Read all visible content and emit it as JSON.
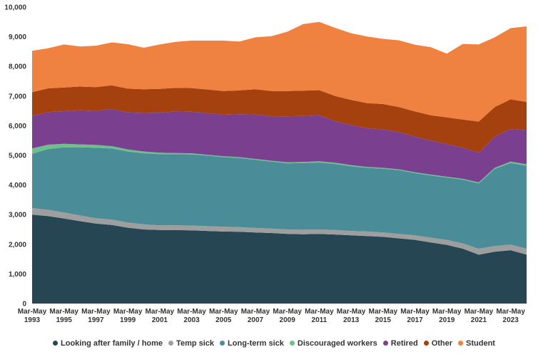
{
  "chart_data": {
    "type": "area",
    "stacked": true,
    "ylim": [
      0,
      10000
    ],
    "y_ticks": [
      "0",
      "1,000",
      "2,000",
      "3,000",
      "4,000",
      "5,000",
      "6,000",
      "7,000",
      "8,000",
      "9,000",
      "10,000"
    ],
    "x_ticks": [
      {
        "line1": "Mar-May",
        "line2": "1993"
      },
      {
        "line1": "Mar-May",
        "line2": "1995"
      },
      {
        "line1": "Mar-May",
        "line2": "1997"
      },
      {
        "line1": "Mar-May",
        "line2": "1999"
      },
      {
        "line1": "Mar-May",
        "line2": "2001"
      },
      {
        "line1": "Mar-May",
        "line2": "2003"
      },
      {
        "line1": "Mar-May",
        "line2": "2005"
      },
      {
        "line1": "Mar-May",
        "line2": "2007"
      },
      {
        "line1": "Mar-May",
        "line2": "2009"
      },
      {
        "line1": "Mar-May",
        "line2": "2011"
      },
      {
        "line1": "Mar-May",
        "line2": "2013"
      },
      {
        "line1": "Mar-May",
        "line2": "2015"
      },
      {
        "line1": "Mar-May",
        "line2": "2017"
      },
      {
        "line1": "Mar-May",
        "line2": "2019"
      },
      {
        "line1": "Mar-May",
        "line2": "2021"
      },
      {
        "line1": "Mar-May",
        "line2": "2023"
      }
    ],
    "x": [
      1993,
      1994,
      1995,
      1996,
      1997,
      1998,
      1999,
      2000,
      2001,
      2002,
      2003,
      2004,
      2005,
      2006,
      2007,
      2008,
      2009,
      2010,
      2011,
      2012,
      2013,
      2014,
      2015,
      2016,
      2017,
      2018,
      2019,
      2020,
      2021,
      2022,
      2023,
      2024
    ],
    "series": [
      {
        "name": "Looking after family / home",
        "color": "#264653",
        "values": [
          3000,
          2950,
          2870,
          2780,
          2700,
          2650,
          2560,
          2500,
          2480,
          2480,
          2470,
          2450,
          2430,
          2420,
          2400,
          2380,
          2350,
          2340,
          2350,
          2330,
          2300,
          2280,
          2250,
          2200,
          2150,
          2060,
          1980,
          1850,
          1650,
          1750,
          1800,
          1650
        ]
      },
      {
        "name": "Temp sick",
        "color": "#9e9e9e",
        "values": [
          220,
          210,
          200,
          190,
          180,
          180,
          170,
          170,
          160,
          160,
          160,
          160,
          160,
          160,
          150,
          150,
          150,
          150,
          150,
          150,
          150,
          150,
          150,
          150,
          150,
          160,
          170,
          180,
          200,
          190,
          190,
          200
        ]
      },
      {
        "name": "Long-term sick",
        "color": "#4a8c98",
        "values": [
          1830,
          2050,
          2200,
          2300,
          2380,
          2400,
          2400,
          2400,
          2400,
          2400,
          2400,
          2380,
          2350,
          2330,
          2300,
          2260,
          2230,
          2250,
          2260,
          2230,
          2180,
          2150,
          2150,
          2150,
          2100,
          2100,
          2100,
          2150,
          2200,
          2600,
          2750,
          2800
        ]
      },
      {
        "name": "Discouraged workers",
        "color": "#6dbf8b",
        "values": [
          180,
          150,
          120,
          100,
          90,
          80,
          70,
          60,
          50,
          40,
          40,
          30,
          30,
          30,
          30,
          30,
          40,
          40,
          40,
          40,
          40,
          30,
          30,
          30,
          30,
          30,
          30,
          30,
          40,
          40,
          50,
          50
        ]
      },
      {
        "name": "Retired",
        "color": "#7b3f8f",
        "values": [
          1100,
          1100,
          1100,
          1150,
          1150,
          1250,
          1250,
          1300,
          1350,
          1400,
          1400,
          1400,
          1400,
          1450,
          1500,
          1500,
          1550,
          1550,
          1550,
          1400,
          1350,
          1300,
          1300,
          1250,
          1200,
          1150,
          1100,
          1050,
          1000,
          1050,
          1100,
          1150
        ]
      },
      {
        "name": "Other",
        "color": "#a5400f",
        "values": [
          800,
          800,
          800,
          800,
          800,
          800,
          800,
          800,
          800,
          800,
          800,
          800,
          800,
          800,
          850,
          850,
          850,
          850,
          850,
          850,
          850,
          850,
          850,
          850,
          850,
          850,
          900,
          950,
          1050,
          1000,
          1000,
          950
        ]
      },
      {
        "name": "Student",
        "color": "#ef8240",
        "values": [
          1400,
          1350,
          1450,
          1350,
          1400,
          1450,
          1500,
          1400,
          1500,
          1550,
          1600,
          1650,
          1700,
          1650,
          1750,
          1850,
          2000,
          2250,
          2300,
          2300,
          2250,
          2250,
          2200,
          2250,
          2250,
          2300,
          2150,
          2550,
          2600,
          2350,
          2400,
          2550
        ]
      }
    ],
    "legend_position": "bottom",
    "grid": false
  }
}
